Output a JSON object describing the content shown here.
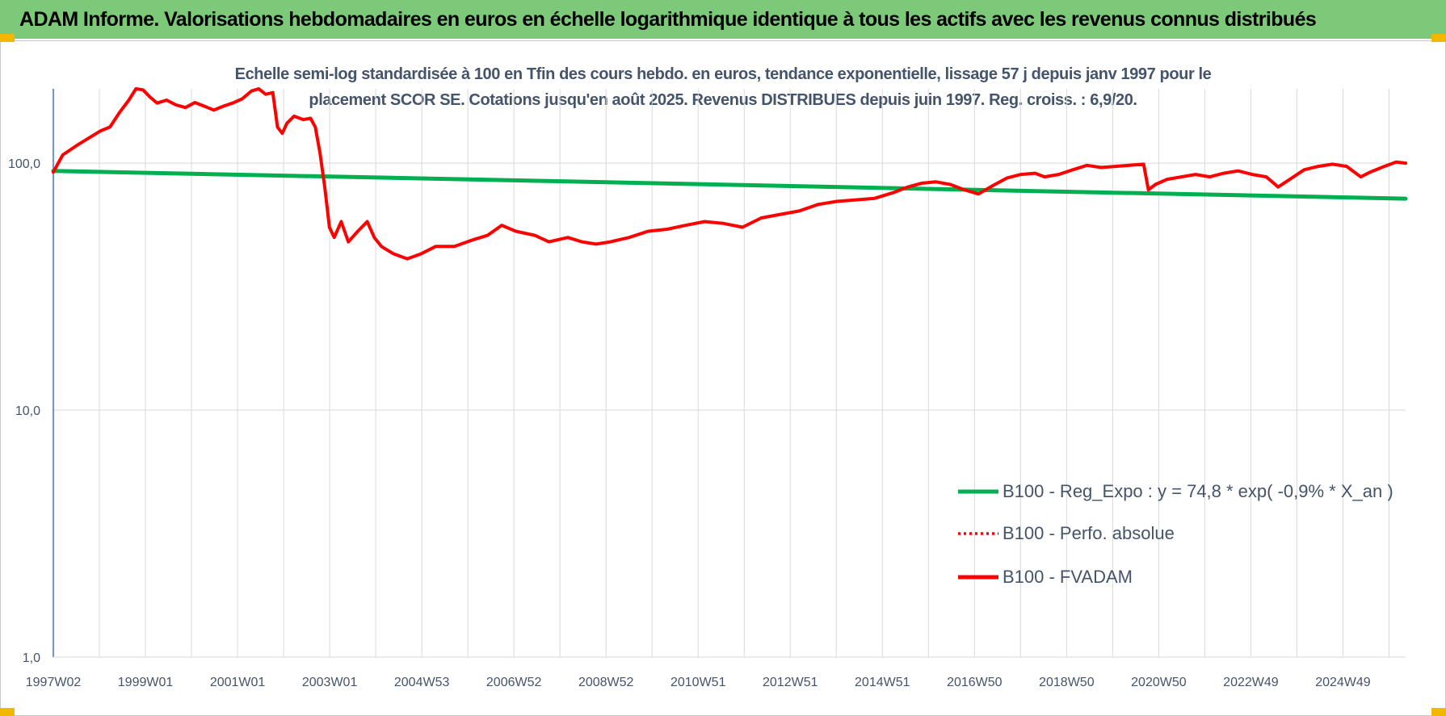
{
  "banner": {
    "title": "ADAM Informe. Valorisations hebdomadaires en euros en échelle logarithmique identique à tous les actifs avec les revenus connus distribués"
  },
  "colors": {
    "banner": "#7dc97a",
    "corner_marks": "#f2b705",
    "regression": "#00b050",
    "fvadam": "#ff0000",
    "perfo": "#ff0000",
    "text": "#44546a",
    "grid": "#d9d9d9"
  },
  "chart_data": {
    "type": "line",
    "title": "Echelle semi-log standardisée à 100 en Tfin des cours hebdo. en euros, tendance exponentielle, lissage 57 j depuis janv 1997 pour le placement SCOR SE.  Cotations jusqu'en août 2025.  Revenus DISTRIBUES depuis juin 1997. Reg. croiss. : 6,9/20.",
    "title_lines": [
      "Echelle semi-log standardisée à 100 en Tfin des cours hebdo. en euros, tendance exponentielle, lissage 57 j depuis janv 1997 pour le",
      "placement SCOR SE.  Cotations jusqu'en août 2025.  Revenus DISTRIBUES depuis juin 1997. Reg. croiss. : 6,9/20."
    ],
    "y_scale": "log",
    "ylim": [
      1,
      200
    ],
    "y_ticks": [
      {
        "value": 1,
        "label": "1,0"
      },
      {
        "value": 10,
        "label": "10,0"
      },
      {
        "value": 100,
        "label": "100,0"
      }
    ],
    "x_ticks": [
      "1997W02",
      "1999W01",
      "2001W01",
      "2003W01",
      "2004W53",
      "2006W52",
      "2008W52",
      "2010W51",
      "2012W51",
      "2014W51",
      "2016W50",
      "2018W50",
      "2020W50",
      "2022W49",
      "2024W49"
    ],
    "x_range_years": [
      1997.0,
      2025.65
    ],
    "grid": "vertical",
    "legend_position": "lower-right",
    "series": [
      {
        "name": "B100 - Reg_Expo : y = 74,8 * exp( -0,9% *  X_an )",
        "style": "solid",
        "color": "#00b050",
        "points": [
          [
            1997.0,
            93.0
          ],
          [
            2025.65,
            71.8
          ]
        ]
      },
      {
        "name": "B100 - Perfo. absolue",
        "style": "dotted",
        "color": "#ff0000",
        "points": []
      },
      {
        "name": "B100 - FVADAM",
        "style": "solid",
        "color": "#ff0000",
        "points": [
          [
            1997.0,
            92
          ],
          [
            1997.2,
            108
          ],
          [
            1997.5,
            118
          ],
          [
            1997.8,
            128
          ],
          [
            1998.0,
            135
          ],
          [
            1998.2,
            140
          ],
          [
            1998.4,
            160
          ],
          [
            1998.6,
            180
          ],
          [
            1998.75,
            200
          ],
          [
            1998.9,
            198
          ],
          [
            1999.05,
            185
          ],
          [
            1999.2,
            175
          ],
          [
            1999.4,
            180
          ],
          [
            1999.6,
            172
          ],
          [
            1999.8,
            168
          ],
          [
            2000.0,
            176
          ],
          [
            2000.2,
            170
          ],
          [
            2000.4,
            164
          ],
          [
            2000.6,
            170
          ],
          [
            2000.8,
            175
          ],
          [
            2001.0,
            182
          ],
          [
            2001.2,
            196
          ],
          [
            2001.35,
            200
          ],
          [
            2001.5,
            190
          ],
          [
            2001.65,
            193
          ],
          [
            2001.75,
            140
          ],
          [
            2001.85,
            132
          ],
          [
            2001.95,
            145
          ],
          [
            2002.1,
            155
          ],
          [
            2002.3,
            150
          ],
          [
            2002.45,
            152
          ],
          [
            2002.55,
            140
          ],
          [
            2002.65,
            110
          ],
          [
            2002.75,
            80
          ],
          [
            2002.85,
            55
          ],
          [
            2002.95,
            50
          ],
          [
            2003.1,
            58
          ],
          [
            2003.25,
            48
          ],
          [
            2003.45,
            53
          ],
          [
            2003.65,
            58
          ],
          [
            2003.8,
            50
          ],
          [
            2003.95,
            46
          ],
          [
            2004.2,
            43
          ],
          [
            2004.5,
            41
          ],
          [
            2004.8,
            43
          ],
          [
            2005.1,
            46
          ],
          [
            2005.5,
            46
          ],
          [
            2005.9,
            49
          ],
          [
            2006.2,
            51
          ],
          [
            2006.5,
            56
          ],
          [
            2006.8,
            53
          ],
          [
            2007.2,
            51
          ],
          [
            2007.5,
            48
          ],
          [
            2007.9,
            50
          ],
          [
            2008.2,
            48
          ],
          [
            2008.5,
            47
          ],
          [
            2008.8,
            48
          ],
          [
            2009.2,
            50
          ],
          [
            2009.6,
            53
          ],
          [
            2010.0,
            54
          ],
          [
            2010.4,
            56
          ],
          [
            2010.8,
            58
          ],
          [
            2011.2,
            57
          ],
          [
            2011.6,
            55
          ],
          [
            2012.0,
            60
          ],
          [
            2012.4,
            62
          ],
          [
            2012.8,
            64
          ],
          [
            2013.2,
            68
          ],
          [
            2013.6,
            70
          ],
          [
            2014.0,
            71
          ],
          [
            2014.4,
            72
          ],
          [
            2014.8,
            76
          ],
          [
            2015.1,
            80
          ],
          [
            2015.4,
            83
          ],
          [
            2015.7,
            84
          ],
          [
            2016.0,
            82
          ],
          [
            2016.3,
            78
          ],
          [
            2016.6,
            75
          ],
          [
            2016.9,
            81
          ],
          [
            2017.2,
            87
          ],
          [
            2017.5,
            90
          ],
          [
            2017.8,
            91
          ],
          [
            2018.0,
            88
          ],
          [
            2018.3,
            90
          ],
          [
            2018.6,
            94
          ],
          [
            2018.9,
            98
          ],
          [
            2019.2,
            96
          ],
          [
            2019.5,
            97
          ],
          [
            2019.8,
            98
          ],
          [
            2020.1,
            99
          ],
          [
            2020.2,
            78
          ],
          [
            2020.35,
            82
          ],
          [
            2020.6,
            86
          ],
          [
            2020.9,
            88
          ],
          [
            2021.2,
            90
          ],
          [
            2021.5,
            88
          ],
          [
            2021.8,
            91
          ],
          [
            2022.1,
            93
          ],
          [
            2022.4,
            90
          ],
          [
            2022.7,
            88
          ],
          [
            2022.95,
            80
          ],
          [
            2023.2,
            86
          ],
          [
            2023.5,
            94
          ],
          [
            2023.8,
            97
          ],
          [
            2024.1,
            99
          ],
          [
            2024.4,
            97
          ],
          [
            2024.7,
            88
          ],
          [
            2024.9,
            92
          ],
          [
            2025.2,
            97
          ],
          [
            2025.45,
            101
          ],
          [
            2025.65,
            100
          ]
        ]
      }
    ]
  }
}
